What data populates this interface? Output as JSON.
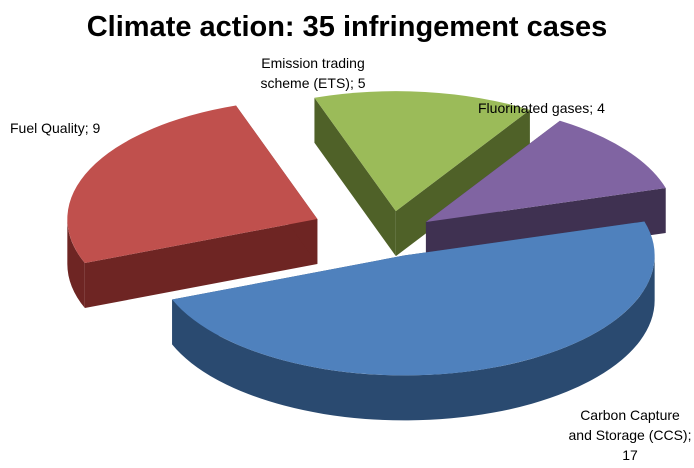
{
  "chart_data": {
    "type": "pie",
    "title": "Climate action: 35 infringement cases",
    "values": [
      5,
      4,
      17,
      9
    ],
    "value_labels": [
      "Emission trading\nscheme (ETS); 5",
      "Fluorinated gases; 4",
      "Carbon Capture\nand Storage (CCS);\n17",
      "Fuel Quality; 9"
    ],
    "colors": [
      "#9bbb59",
      "#8064a2",
      "#4f81bd",
      "#c0504d"
    ],
    "side_colors": [
      "#4f6128",
      "#3f3151",
      "#2a4a70",
      "#6e2523"
    ]
  }
}
